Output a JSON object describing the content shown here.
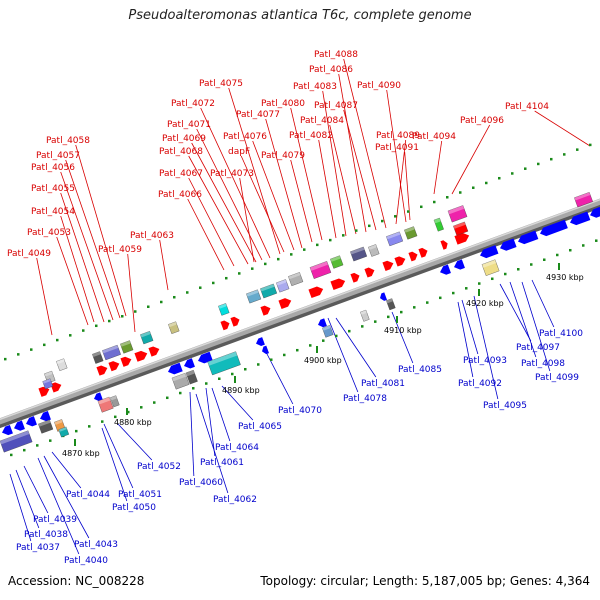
{
  "title": "Pseudoalteromonas atlantica T6c, complete genome",
  "accession": "Accession: NC_008228",
  "topology": "Topology: circular; Length: 5,187,005 bp; Genes: 4,364",
  "colors": {
    "forward_label": "#d80000",
    "reverse_label": "#0000cc",
    "forward_arrow": "#ff0000",
    "reverse_arrow": "#0000ff",
    "backbone": "#8c8c8c",
    "tick": "#1a8a1a"
  },
  "scale_ticks": [
    "4870 kbp",
    "4880 kbp",
    "4890 kbp",
    "4900 kbp",
    "4910 kbp",
    "4920 kbp",
    "4930 kbp"
  ],
  "forward_labels": [
    "Patl_4049",
    "Patl_4053",
    "Patl_4054",
    "Patl_4055",
    "Patl_4056",
    "Patl_4057",
    "Patl_4058",
    "Patl_4059",
    "Patl_4063",
    "Patl_4066",
    "Patl_4067",
    "Patl_4068",
    "Patl_4069",
    "Patl_4071",
    "Patl_4072",
    "Patl_4075",
    "dapF",
    "Patl_4073",
    "Patl_4076",
    "Patl_4077",
    "Patl_4079",
    "Patl_4080",
    "Patl_4082",
    "Patl_4083",
    "Patl_4084",
    "Patl_4086",
    "Patl_4087",
    "Patl_4088",
    "Patl_4089",
    "Patl_4090",
    "Patl_4091",
    "Patl_4094",
    "Patl_4096",
    "Patl_4104"
  ],
  "reverse_labels": [
    "Patl_4037",
    "Patl_4038",
    "Patl_4039",
    "Patl_4040",
    "Patl_4043",
    "Patl_4044",
    "Patl_4050",
    "Patl_4051",
    "Patl_4052",
    "Patl_4060",
    "Patl_4061",
    "Patl_4062",
    "Patl_4064",
    "Patl_4065",
    "Patl_4070",
    "Patl_4078",
    "Patl_4081",
    "Patl_4085",
    "Patl_4092",
    "Patl_4093",
    "Patl_4095",
    "Patl_4097",
    "Patl_4098",
    "Patl_4099",
    "Patl_4100"
  ]
}
